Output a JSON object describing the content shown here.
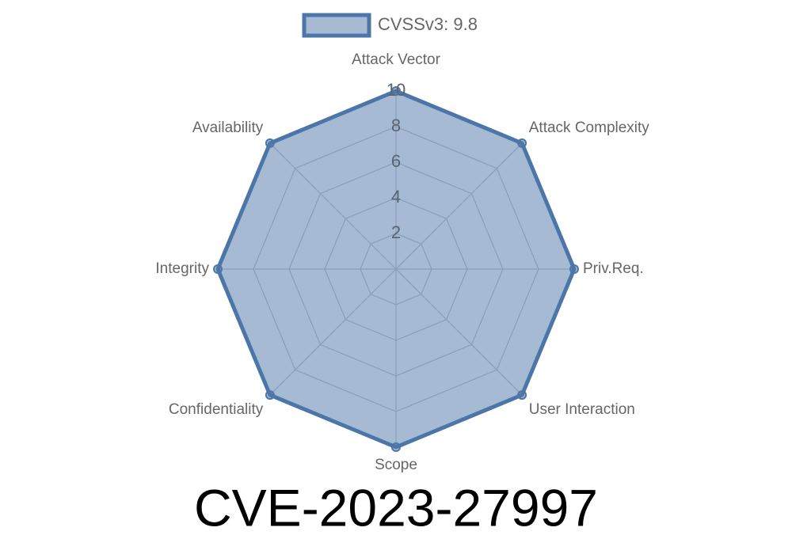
{
  "chart_data": {
    "type": "radar",
    "title": "CVE-2023-27997",
    "categories": [
      "Attack Vector",
      "Attack Complexity",
      "Priv.Req.",
      "User Interaction",
      "Scope",
      "Confidentiality",
      "Integrity",
      "Availability"
    ],
    "series": [
      {
        "name": "CVSSv3: 9.8",
        "color": "#4d76a8",
        "values": [
          10,
          10,
          10,
          10,
          10,
          10,
          10,
          10
        ]
      }
    ],
    "ylim": [
      0,
      10
    ],
    "yticks": [
      2,
      4,
      6,
      8,
      10
    ],
    "grid": true,
    "legend": "top"
  }
}
